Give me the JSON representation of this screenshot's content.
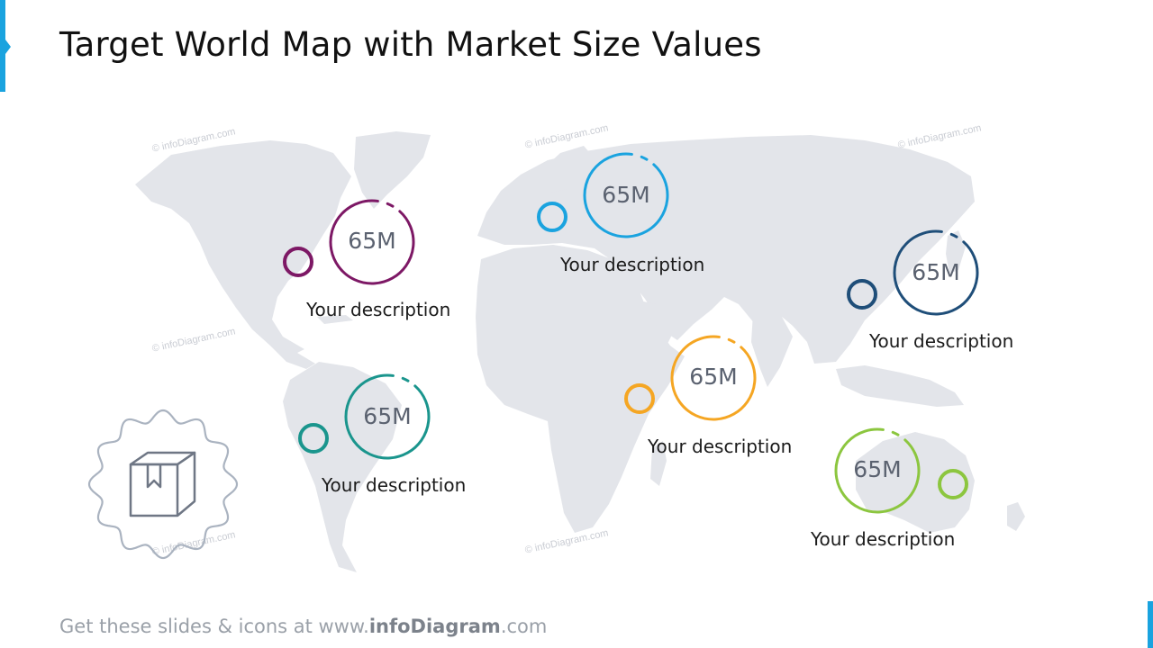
{
  "title": "Target World Map with Market Size Values",
  "watermark": "© infoDiagram.com",
  "colors": {
    "accent": "#1aa3df",
    "purple": "#7d1865",
    "blue": "#1aa3df",
    "navy": "#1f4e79",
    "teal": "#1a958d",
    "orange": "#f5a623",
    "green": "#8cc63f",
    "land": "#e3e5ea"
  },
  "markers": [
    {
      "region": "north-america",
      "color": "purple",
      "value": "65M",
      "description": "Your description"
    },
    {
      "region": "europe",
      "color": "blue",
      "value": "65M",
      "description": "Your description"
    },
    {
      "region": "east-asia",
      "color": "navy",
      "value": "65M",
      "description": "Your description"
    },
    {
      "region": "south-america",
      "color": "teal",
      "value": "65M",
      "description": "Your description"
    },
    {
      "region": "east-africa",
      "color": "orange",
      "value": "65M",
      "description": "Your description"
    },
    {
      "region": "australia",
      "color": "green",
      "value": "65M",
      "description": "Your description"
    }
  ],
  "badge": {
    "icon": "package-box-icon"
  },
  "footer": {
    "prefix": "Get these slides & icons at www.",
    "brand": "infoDiagram",
    "suffix": ".com"
  }
}
